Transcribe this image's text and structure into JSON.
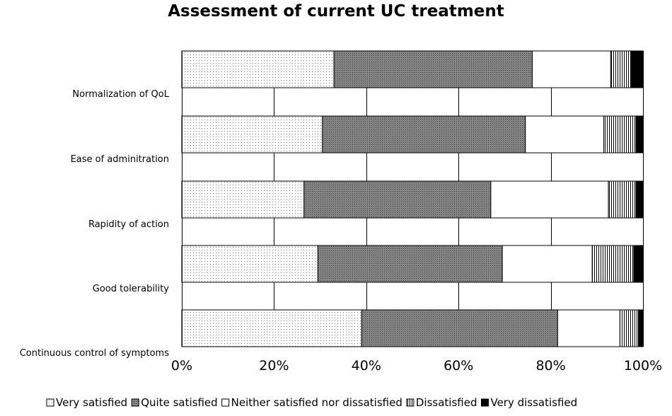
{
  "chart_data": {
    "type": "bar",
    "orientation": "horizontal",
    "stacked": "percent",
    "title": "Assessment of current UC treatment",
    "categories": [
      "Normalization of QoL",
      "Ease of adminitration",
      "Rapidity of action",
      "Good tolerability",
      "Continuous control of symptoms"
    ],
    "series": [
      {
        "name": "Very satisfied",
        "pattern": "dots",
        "values": [
          33,
          30.5,
          26.5,
          29.5,
          39
        ]
      },
      {
        "name": "Quite satisfied",
        "pattern": "dense-dots",
        "values": [
          43,
          44,
          40.5,
          40,
          42.5
        ]
      },
      {
        "name": "Neither satisfied nor dissatisfied",
        "pattern": "white",
        "values": [
          17,
          17,
          25.5,
          19.5,
          13.5
        ]
      },
      {
        "name": "Dissatisfied",
        "pattern": "vertical-lines",
        "values": [
          4.5,
          7,
          6,
          9,
          4
        ]
      },
      {
        "name": "Very dissatisfied",
        "pattern": "black",
        "values": [
          2.5,
          1.5,
          1.5,
          2,
          1
        ]
      }
    ],
    "xlim": [
      0,
      100
    ],
    "xticks": [
      "0%",
      "20%",
      "40%",
      "60%",
      "80%",
      "100%"
    ],
    "grid": true,
    "legend": "bottom"
  }
}
